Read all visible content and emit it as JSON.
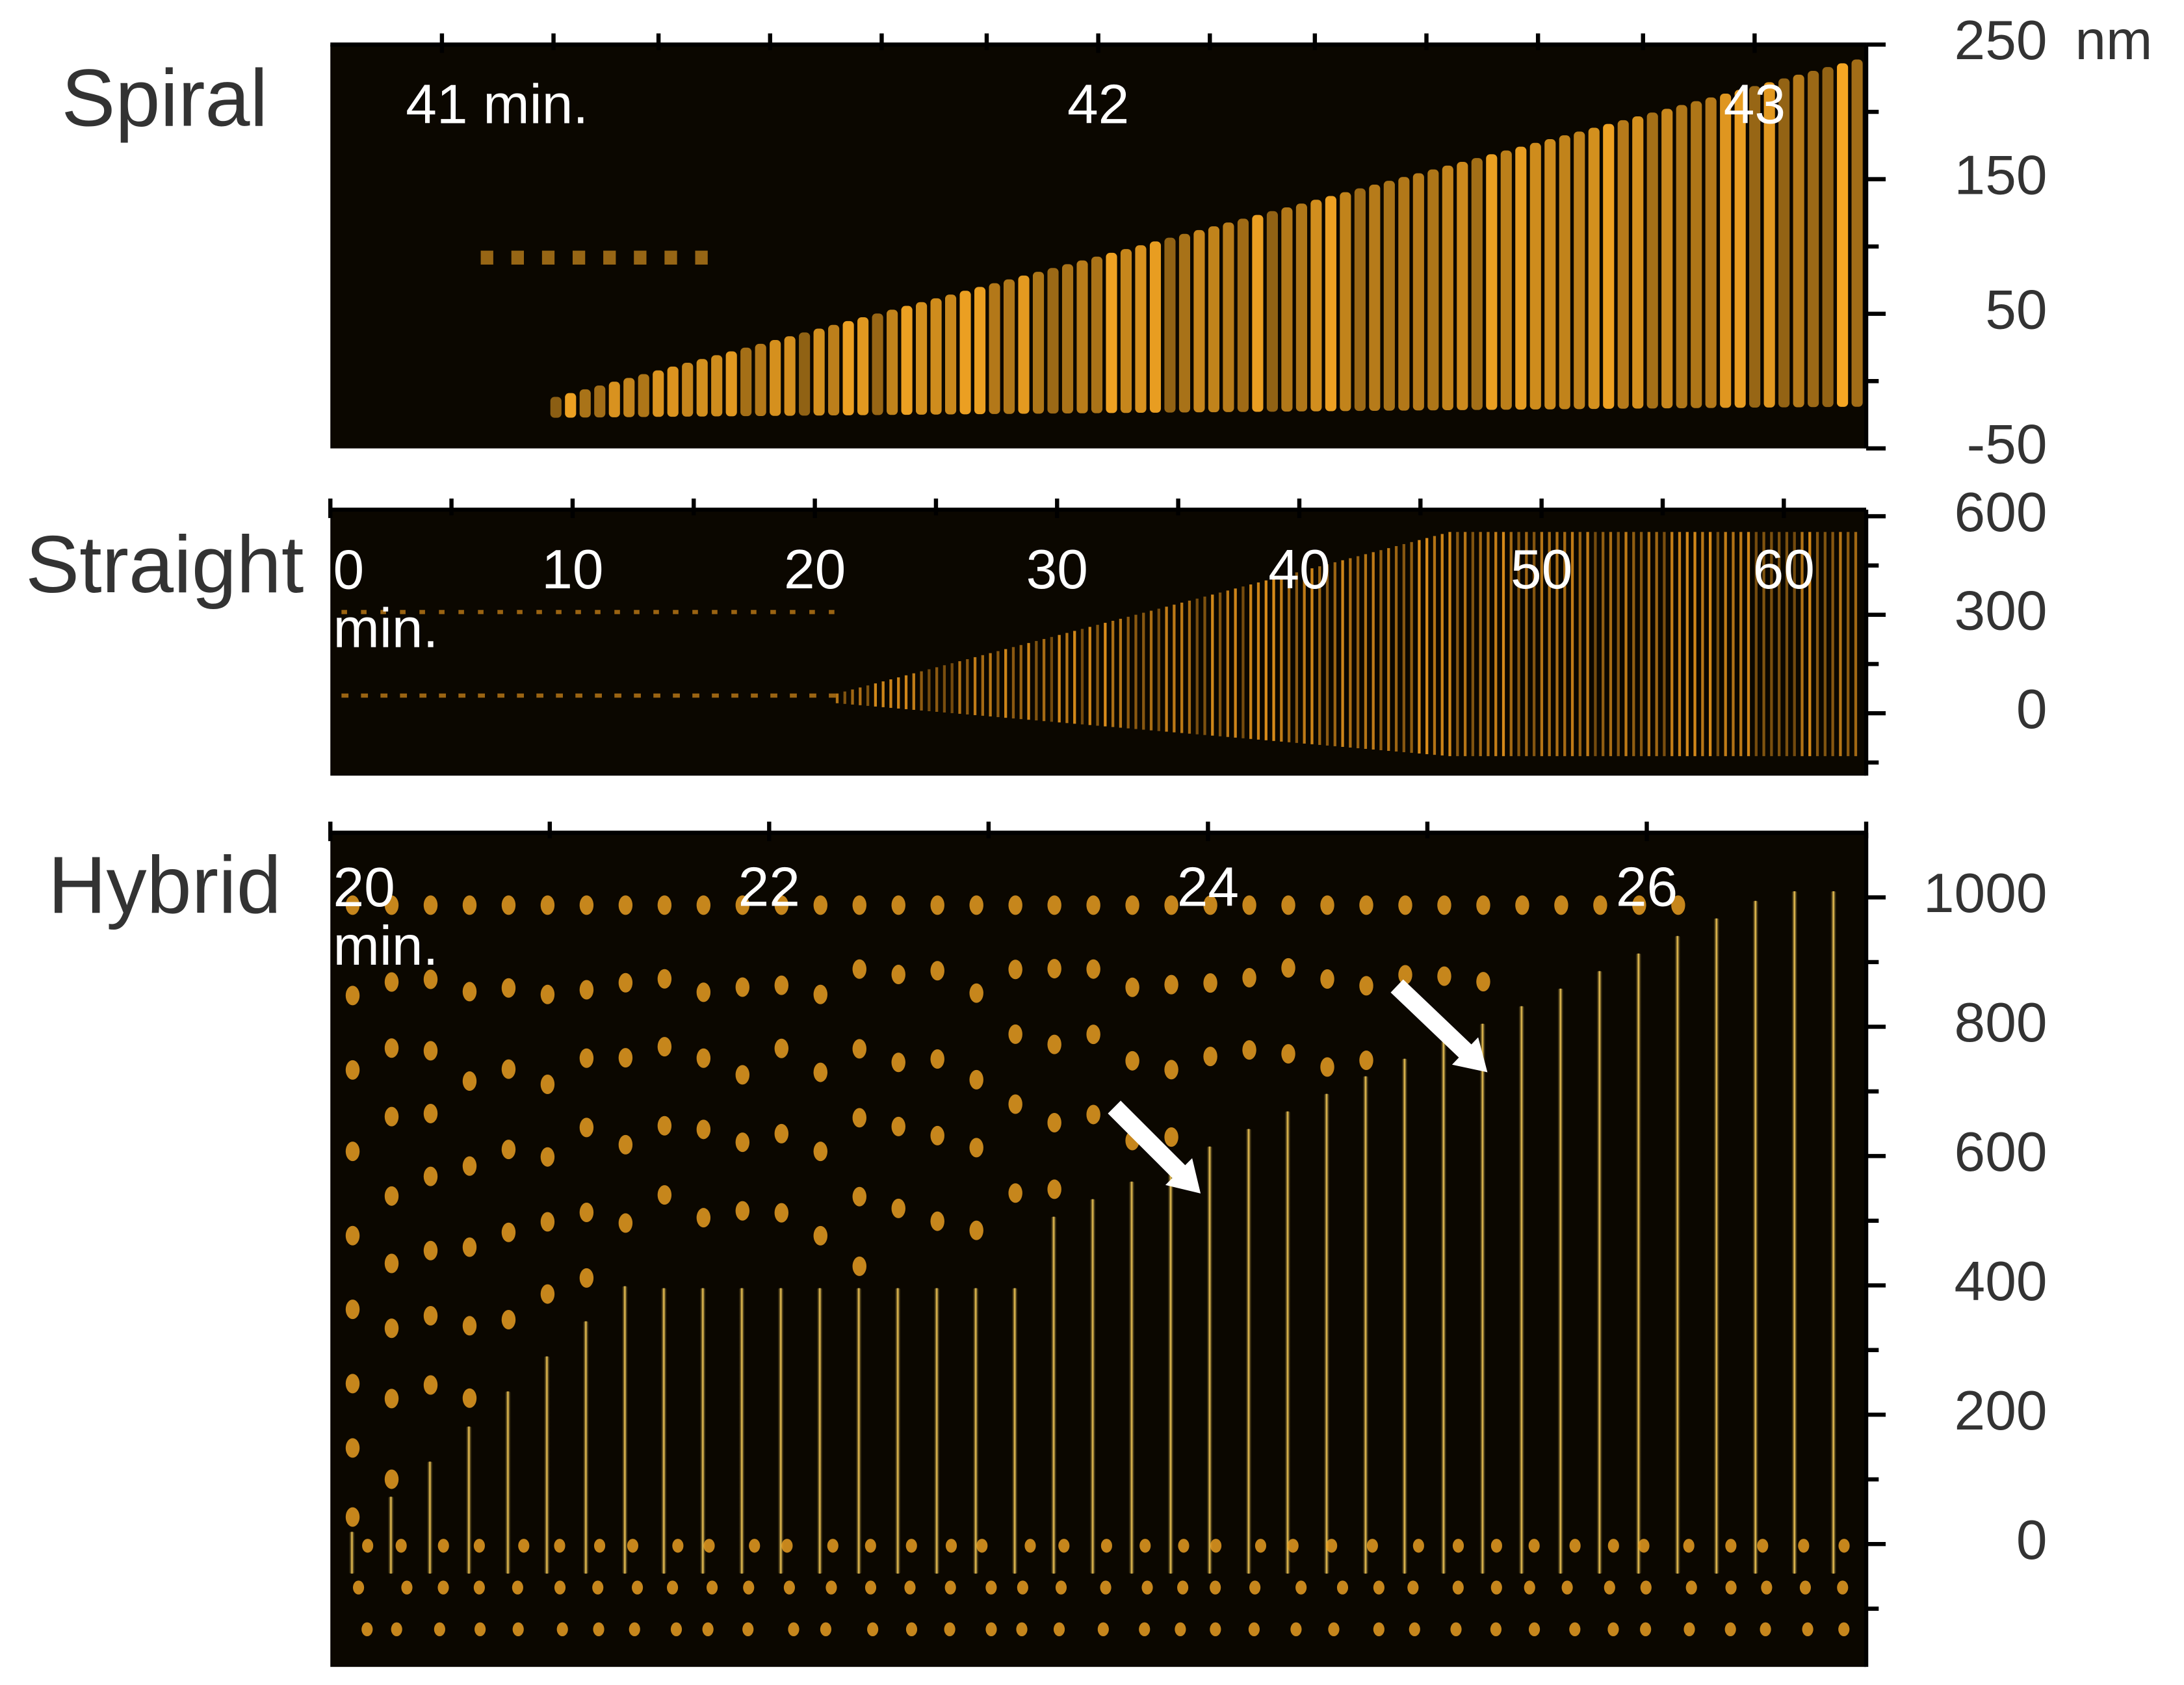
{
  "chart_data": [
    {
      "type": "kymograph",
      "title": "Spiral",
      "color": "#f5a623",
      "xlim": [
        40.83,
        43.17
      ],
      "xticks": [
        {
          "value": 41,
          "label": "41 min."
        },
        42,
        43
      ],
      "minor_xticks": [
        41.17,
        41.33,
        41.5,
        41.67,
        41.83,
        42.17,
        42.33,
        42.5,
        42.67,
        42.83
      ],
      "ylim": [
        -50,
        250
      ],
      "yticks": [
        250,
        150,
        50,
        -50
      ],
      "y_unit": "nm",
      "minor_yticks": [
        200,
        100,
        0
      ]
    },
    {
      "type": "kymograph",
      "title": "Straight",
      "color": "#d98c1a",
      "xlim": [
        0,
        63.4
      ],
      "xticks": [
        {
          "value": 0,
          "label": "0\nmin."
        },
        10,
        20,
        30,
        40,
        50,
        60
      ],
      "minor_xticks": [
        5,
        15,
        25,
        35,
        45,
        55
      ],
      "ylim": [
        -190,
        620
      ],
      "yticks": [
        600,
        300,
        0
      ],
      "minor_yticks": [
        450,
        150,
        -150
      ]
    },
    {
      "type": "kymograph",
      "title": "Hybrid",
      "color": "#f5a623",
      "xlim": [
        20,
        27
      ],
      "xticks": [
        {
          "value": 20,
          "label": "20\nmin."
        },
        22,
        24,
        26
      ],
      "minor_xticks": [
        21,
        23,
        25,
        27
      ],
      "ylim": [
        -190,
        1100
      ],
      "yticks": [
        1000,
        800,
        600,
        400,
        200,
        0
      ],
      "minor_yticks": [
        900,
        700,
        500,
        300,
        100,
        -100
      ]
    }
  ]
}
